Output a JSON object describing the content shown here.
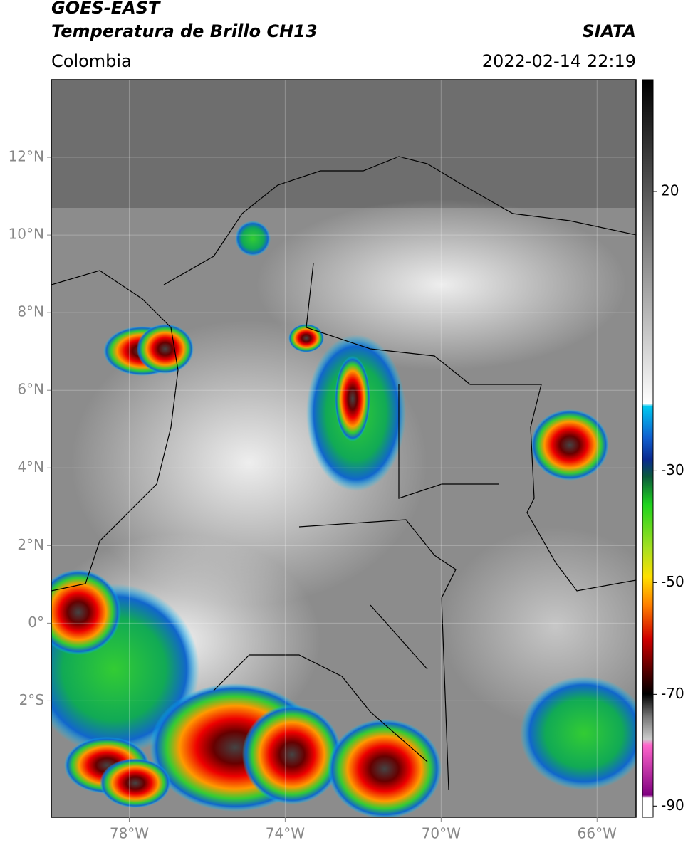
{
  "header": {
    "title": "GOES-EAST",
    "subtitle": "Temperatura de Brillo CH13",
    "source": "SIATA",
    "region": "Colombia",
    "datetime": "2022-02-14 22:19"
  },
  "map": {
    "lonlim": [
      -80,
      -65
    ],
    "latlim": [
      -5,
      14
    ],
    "lon_ticks": [
      {
        "value": -78,
        "label": "78°W"
      },
      {
        "value": -74,
        "label": "74°W"
      },
      {
        "value": -70,
        "label": "70°W"
      },
      {
        "value": -66,
        "label": "66°W"
      }
    ],
    "lat_ticks": [
      {
        "value": 12,
        "label": "12°N"
      },
      {
        "value": 10,
        "label": "10°N"
      },
      {
        "value": 8,
        "label": "8°N"
      },
      {
        "value": 6,
        "label": "6°N"
      },
      {
        "value": 4,
        "label": "4°N"
      },
      {
        "value": 2,
        "label": "2°N"
      },
      {
        "value": 0,
        "label": "0°"
      },
      {
        "value": -2,
        "label": "2°S"
      }
    ],
    "grid": true
  },
  "colorbar": {
    "lim": [
      -92,
      40
    ],
    "ticks": [
      20,
      -30,
      -50,
      -70,
      -90
    ]
  }
}
